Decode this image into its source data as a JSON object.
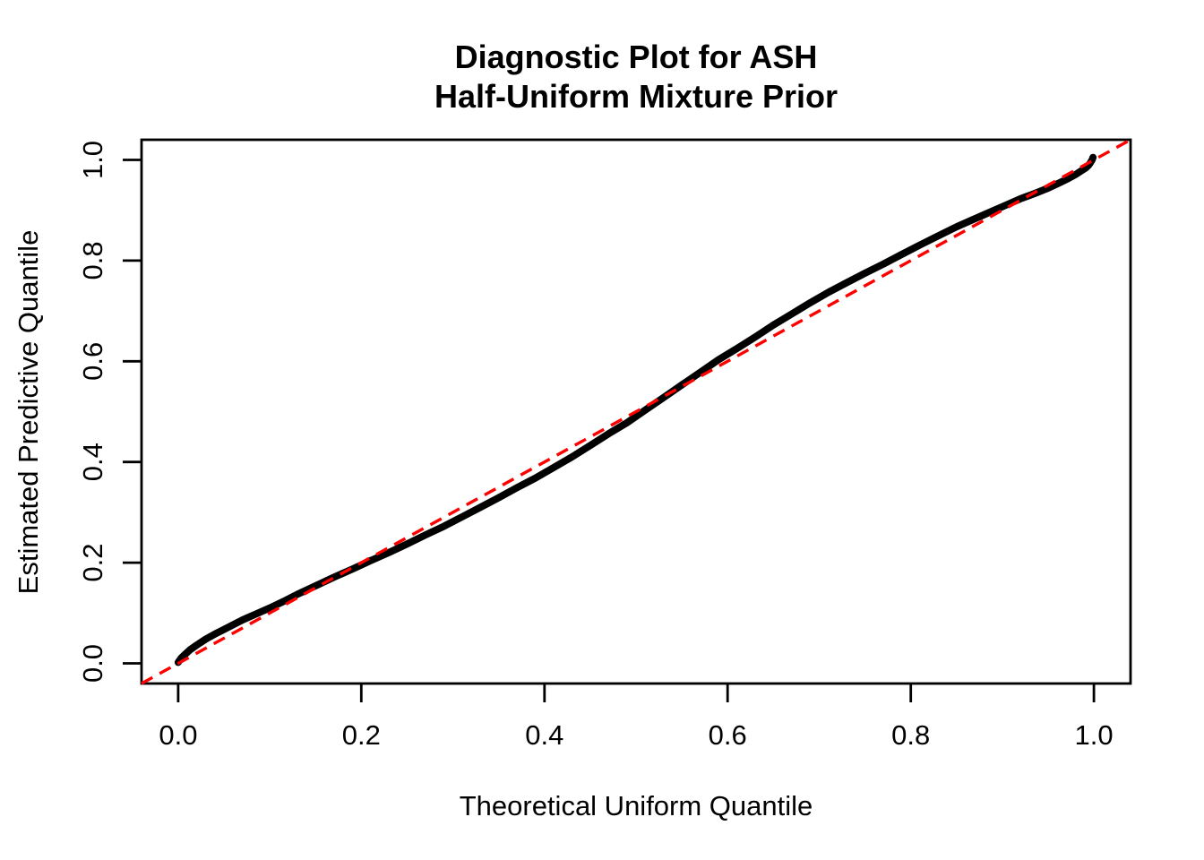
{
  "title": {
    "line1": "Diagnostic Plot for ASH",
    "line2": "Half-Uniform Mixture Prior"
  },
  "chart_data": {
    "type": "line",
    "title": "Diagnostic Plot for ASH Half-Uniform Mixture Prior",
    "xlabel": "Theoretical Uniform Quantile",
    "ylabel": "Estimated Predictive Quantile",
    "xlim": [
      0,
      1
    ],
    "ylim": [
      0,
      1
    ],
    "axis_range_expanded": [
      -0.04,
      1.04
    ],
    "grid": false,
    "legend": "none",
    "x_ticks": [
      0.0,
      0.2,
      0.4,
      0.6,
      0.8,
      1.0
    ],
    "x_tick_labels": [
      "0.0",
      "0.2",
      "0.4",
      "0.6",
      "0.8",
      "1.0"
    ],
    "y_ticks": [
      0.0,
      0.2,
      0.4,
      0.6,
      0.8,
      1.0
    ],
    "y_tick_labels": [
      "0.0",
      "0.2",
      "0.4",
      "0.6",
      "0.8",
      "1.0"
    ],
    "series": [
      {
        "name": "estimated-predictive-quantiles",
        "type": "thick-point-curve",
        "color": "#000000",
        "points": [
          [
            0.0,
            0.002
          ],
          [
            0.003,
            0.01
          ],
          [
            0.007,
            0.017
          ],
          [
            0.013,
            0.027
          ],
          [
            0.02,
            0.036
          ],
          [
            0.03,
            0.048
          ],
          [
            0.042,
            0.06
          ],
          [
            0.055,
            0.072
          ],
          [
            0.07,
            0.086
          ],
          [
            0.085,
            0.098
          ],
          [
            0.1,
            0.11
          ],
          [
            0.115,
            0.123
          ],
          [
            0.13,
            0.137
          ],
          [
            0.15,
            0.154
          ],
          [
            0.17,
            0.171
          ],
          [
            0.19,
            0.187
          ],
          [
            0.21,
            0.204
          ],
          [
            0.23,
            0.22
          ],
          [
            0.25,
            0.237
          ],
          [
            0.27,
            0.255
          ],
          [
            0.29,
            0.272
          ],
          [
            0.31,
            0.291
          ],
          [
            0.33,
            0.31
          ],
          [
            0.35,
            0.329
          ],
          [
            0.37,
            0.349
          ],
          [
            0.39,
            0.368
          ],
          [
            0.41,
            0.389
          ],
          [
            0.43,
            0.41
          ],
          [
            0.45,
            0.433
          ],
          [
            0.47,
            0.456
          ],
          [
            0.49,
            0.478
          ],
          [
            0.51,
            0.503
          ],
          [
            0.53,
            0.528
          ],
          [
            0.55,
            0.553
          ],
          [
            0.57,
            0.578
          ],
          [
            0.59,
            0.603
          ],
          [
            0.61,
            0.625
          ],
          [
            0.63,
            0.648
          ],
          [
            0.65,
            0.672
          ],
          [
            0.67,
            0.694
          ],
          [
            0.69,
            0.716
          ],
          [
            0.71,
            0.737
          ],
          [
            0.73,
            0.756
          ],
          [
            0.75,
            0.775
          ],
          [
            0.77,
            0.793
          ],
          [
            0.79,
            0.812
          ],
          [
            0.81,
            0.831
          ],
          [
            0.83,
            0.849
          ],
          [
            0.85,
            0.867
          ],
          [
            0.87,
            0.883
          ],
          [
            0.89,
            0.899
          ],
          [
            0.905,
            0.911
          ],
          [
            0.92,
            0.923
          ],
          [
            0.935,
            0.933
          ],
          [
            0.95,
            0.944
          ],
          [
            0.962,
            0.954
          ],
          [
            0.972,
            0.963
          ],
          [
            0.98,
            0.971
          ],
          [
            0.986,
            0.978
          ],
          [
            0.991,
            0.984
          ],
          [
            0.994,
            0.989
          ],
          [
            0.996,
            0.994
          ],
          [
            0.998,
            1.0
          ],
          [
            0.999,
            1.005
          ]
        ]
      },
      {
        "name": "identity-reference-diagonal",
        "type": "dashed-line",
        "color": "#FF0000",
        "points": [
          [
            -0.04,
            -0.04
          ],
          [
            1.04,
            1.04
          ]
        ]
      }
    ]
  }
}
